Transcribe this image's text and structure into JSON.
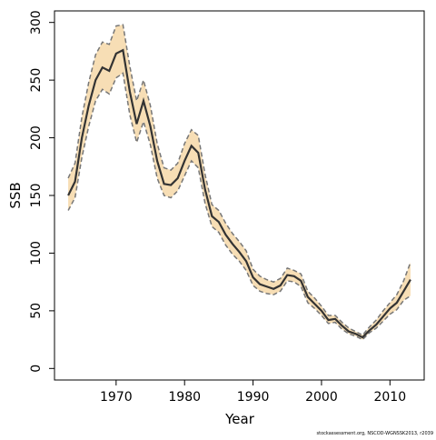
{
  "chart_data": {
    "type": "line",
    "x_label": "Year",
    "y_label": "SSB",
    "footnote": "stockassessment.org, NSCOD-WGNSSK2013, r2039",
    "x": [
      1963,
      1964,
      1965,
      1966,
      1967,
      1968,
      1969,
      1970,
      1971,
      1972,
      1973,
      1974,
      1975,
      1976,
      1977,
      1978,
      1979,
      1980,
      1981,
      1982,
      1983,
      1984,
      1985,
      1986,
      1987,
      1988,
      1989,
      1990,
      1991,
      1992,
      1993,
      1994,
      1995,
      1996,
      1997,
      1998,
      1999,
      2000,
      2001,
      2002,
      2003,
      2004,
      2005,
      2006,
      2007,
      2008,
      2009,
      2010,
      2011,
      2012,
      2013
    ],
    "series": [
      {
        "color": "#333333",
        "values": [
          150,
          162,
          200,
          228,
          250,
          261,
          258,
          273,
          276,
          240,
          212,
          232,
          210,
          180,
          160,
          159,
          165,
          180,
          193,
          187,
          155,
          132,
          127,
          116,
          108,
          101,
          93,
          79,
          73,
          71,
          69,
          72,
          81,
          80,
          76,
          62,
          56,
          50,
          42,
          43,
          37,
          32,
          30,
          27,
          33,
          38,
          45,
          52,
          57,
          67,
          77
        ]
      },
      {
        "color": "#777777",
        "values": [
          165,
          178,
          218,
          248,
          272,
          283,
          281,
          297,
          298,
          262,
          232,
          250,
          228,
          195,
          174,
          172,
          178,
          195,
          207,
          202,
          168,
          142,
          137,
          126,
          117,
          110,
          102,
          86,
          80,
          77,
          75,
          78,
          87,
          85,
          82,
          67,
          61,
          54,
          46,
          46,
          40,
          35,
          32,
          29,
          36,
          42,
          50,
          57,
          64,
          76,
          92
        ]
      },
      {
        "color": "#777777",
        "values": [
          137,
          148,
          183,
          210,
          232,
          242,
          238,
          252,
          256,
          220,
          196,
          214,
          194,
          165,
          150,
          148,
          154,
          167,
          180,
          174,
          143,
          123,
          118,
          107,
          99,
          93,
          85,
          72,
          67,
          65,
          64,
          67,
          76,
          75,
          71,
          57,
          52,
          46,
          39,
          40,
          34,
          30,
          28,
          25,
          31,
          35,
          41,
          47,
          51,
          59,
          63
        ]
      }
    ],
    "band_color": "#f7deb5",
    "xlim": [
      1961,
      2015
    ],
    "ylim": [
      -10,
      310
    ],
    "xticks": [
      1970,
      1980,
      1990,
      2000,
      2010
    ],
    "yticks": [
      0,
      50,
      100,
      150,
      200,
      250,
      300
    ]
  }
}
